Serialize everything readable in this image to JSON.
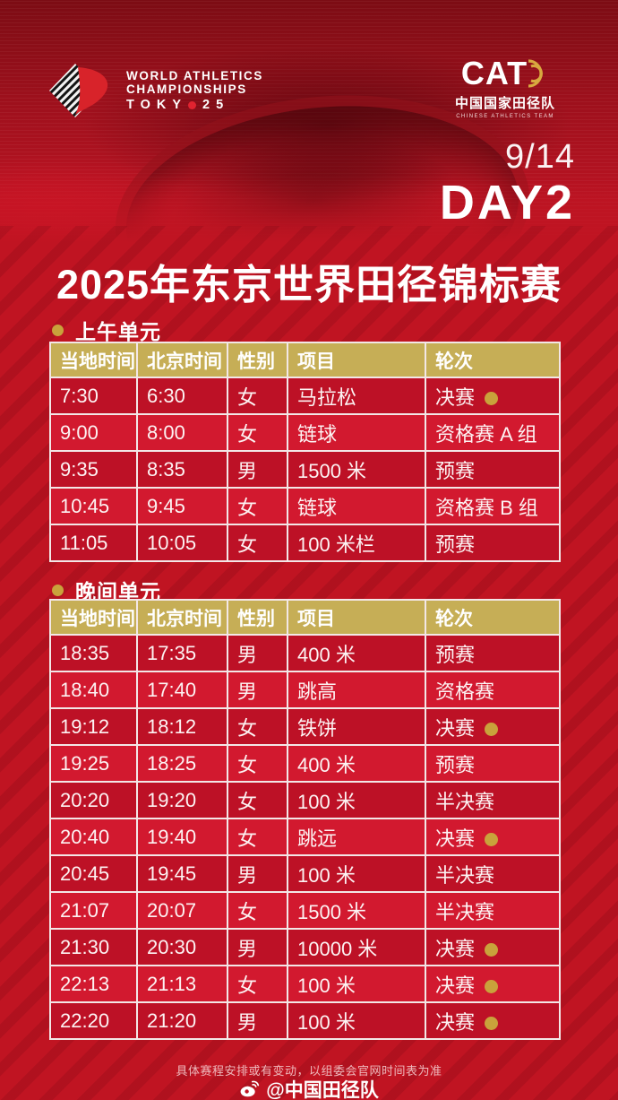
{
  "colors": {
    "background_red": "#c01422",
    "row_dark": "#bd1126",
    "row_light": "#d2192f",
    "header_gold": "#c6ae56",
    "medal_dot_gold": "#c9a23b",
    "logo_arc_gold": "#d8a93f"
  },
  "hero": {
    "wa_logo": {
      "line1": "WORLD ATHLETICS",
      "line2": "CHAMPIONSHIPS",
      "line3_prefix": "TOKY",
      "line3_suffix": "25"
    },
    "cat_logo": {
      "acronym": "CAT",
      "name_cn": "中国国家田径队",
      "name_en": "CHINESE ATHLETICS TEAM"
    },
    "date": "9/14",
    "day": "DAY2"
  },
  "title": "2025年东京世界田径锦标赛",
  "table_columns": [
    "当地时间",
    "北京时间",
    "性别",
    "项目",
    "轮次"
  ],
  "sessions": [
    {
      "label": "上午单元",
      "rows": [
        {
          "local": "7:30",
          "beijing": "6:30",
          "gender": "女",
          "event": "马拉松",
          "round": "决赛",
          "medal": true
        },
        {
          "local": "9:00",
          "beijing": "8:00",
          "gender": "女",
          "event": "链球",
          "round": "资格赛 A 组",
          "medal": false
        },
        {
          "local": "9:35",
          "beijing": "8:35",
          "gender": "男",
          "event": "1500 米",
          "round": "预赛",
          "medal": false
        },
        {
          "local": "10:45",
          "beijing": "9:45",
          "gender": "女",
          "event": "链球",
          "round": "资格赛 B 组",
          "medal": false
        },
        {
          "local": "11:05",
          "beijing": "10:05",
          "gender": "女",
          "event": "100 米栏",
          "round": "预赛",
          "medal": false
        }
      ]
    },
    {
      "label": "晚间单元",
      "rows": [
        {
          "local": "18:35",
          "beijing": "17:35",
          "gender": "男",
          "event": "400 米",
          "round": "预赛",
          "medal": false
        },
        {
          "local": "18:40",
          "beijing": "17:40",
          "gender": "男",
          "event": "跳高",
          "round": "资格赛",
          "medal": false
        },
        {
          "local": "19:12",
          "beijing": "18:12",
          "gender": "女",
          "event": "铁饼",
          "round": "决赛",
          "medal": true
        },
        {
          "local": "19:25",
          "beijing": "18:25",
          "gender": "女",
          "event": "400 米",
          "round": "预赛",
          "medal": false
        },
        {
          "local": "20:20",
          "beijing": "19:20",
          "gender": "女",
          "event": "100 米",
          "round": "半决赛",
          "medal": false
        },
        {
          "local": "20:40",
          "beijing": "19:40",
          "gender": "女",
          "event": "跳远",
          "round": "决赛",
          "medal": true
        },
        {
          "local": "20:45",
          "beijing": "19:45",
          "gender": "男",
          "event": "100 米",
          "round": "半决赛",
          "medal": false
        },
        {
          "local": "21:07",
          "beijing": "20:07",
          "gender": "女",
          "event": "1500 米",
          "round": "半决赛",
          "medal": false
        },
        {
          "local": "21:30",
          "beijing": "20:30",
          "gender": "男",
          "event": "10000 米",
          "round": "决赛",
          "medal": true
        },
        {
          "local": "22:13",
          "beijing": "21:13",
          "gender": "女",
          "event": "100 米",
          "round": "决赛",
          "medal": true
        },
        {
          "local": "22:20",
          "beijing": "21:20",
          "gender": "男",
          "event": "100 米",
          "round": "决赛",
          "medal": true
        }
      ]
    }
  ],
  "footer": {
    "note": "具体赛程安排或有变动，以组委会官网时间表为准",
    "weibo_handle": "@中国田径队"
  }
}
